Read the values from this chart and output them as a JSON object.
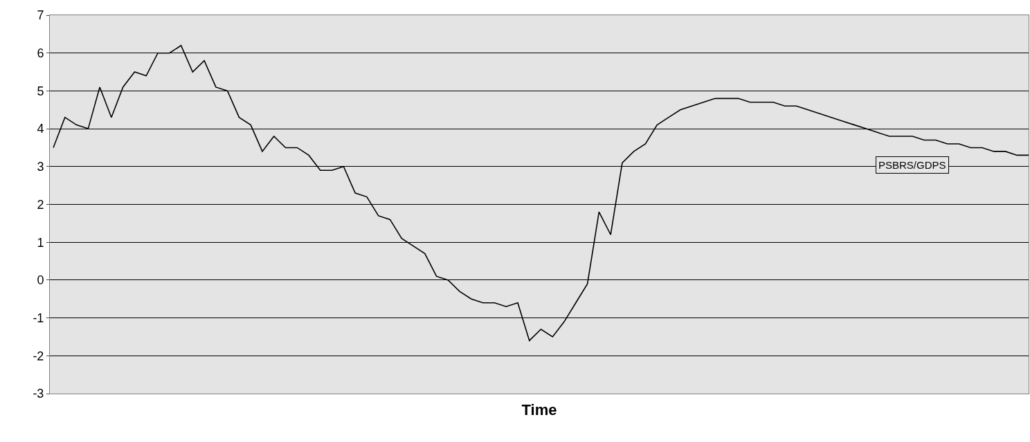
{
  "chart_data": {
    "type": "line",
    "xlabel": "Time",
    "categories": [
      null,
      null,
      null,
      null,
      null,
      null,
      null,
      null,
      null,
      null,
      null,
      null,
      null,
      null,
      null,
      null,
      null,
      null,
      null,
      null,
      null,
      null,
      null,
      null,
      null,
      null,
      null,
      null,
      null,
      null,
      null,
      null,
      null,
      null,
      null,
      null,
      null,
      null,
      null,
      null,
      null,
      null,
      null,
      null,
      null,
      null,
      null,
      null,
      null,
      null,
      null,
      null,
      null,
      null,
      null,
      null,
      null,
      null,
      null,
      null,
      null,
      null,
      null,
      null,
      null,
      null,
      null,
      null,
      null,
      null,
      null,
      null,
      null,
      null,
      null,
      null,
      null,
      null,
      null,
      null,
      null,
      null,
      null,
      null,
      null
    ],
    "series": [
      {
        "name": "PSBRS/GDPS",
        "color": "#000000",
        "values": [
          3.5,
          4.3,
          4.1,
          4.0,
          5.1,
          4.3,
          5.1,
          5.5,
          5.4,
          6.0,
          6.0,
          6.2,
          5.5,
          5.8,
          5.1,
          5.0,
          4.3,
          4.1,
          3.4,
          3.8,
          3.5,
          3.5,
          3.3,
          2.9,
          2.9,
          3.0,
          2.3,
          2.2,
          1.7,
          1.6,
          1.1,
          0.9,
          0.7,
          0.1,
          0.0,
          -0.3,
          -0.5,
          -0.6,
          -0.6,
          -0.7,
          -0.6,
          -1.6,
          -1.3,
          -1.5,
          -1.1,
          -0.6,
          -0.1,
          1.8,
          1.2,
          3.1,
          3.4,
          3.6,
          4.1,
          4.3,
          4.5,
          4.6,
          4.7,
          4.8,
          4.8,
          4.8,
          4.7,
          4.7,
          4.7,
          4.6,
          4.6,
          4.5,
          4.4,
          4.3,
          4.2,
          4.1,
          4.0,
          3.9,
          3.8,
          3.8,
          3.8,
          3.7,
          3.7,
          3.6,
          3.6,
          3.5,
          3.5,
          3.4,
          3.4,
          3.3,
          3.3
        ]
      }
    ],
    "ylim": [
      -3,
      7
    ],
    "yticks": [
      -3,
      -2,
      -1,
      0,
      1,
      2,
      3,
      4,
      5,
      6,
      7
    ],
    "grid": "y",
    "legend": false,
    "tick_labels": "y"
  }
}
